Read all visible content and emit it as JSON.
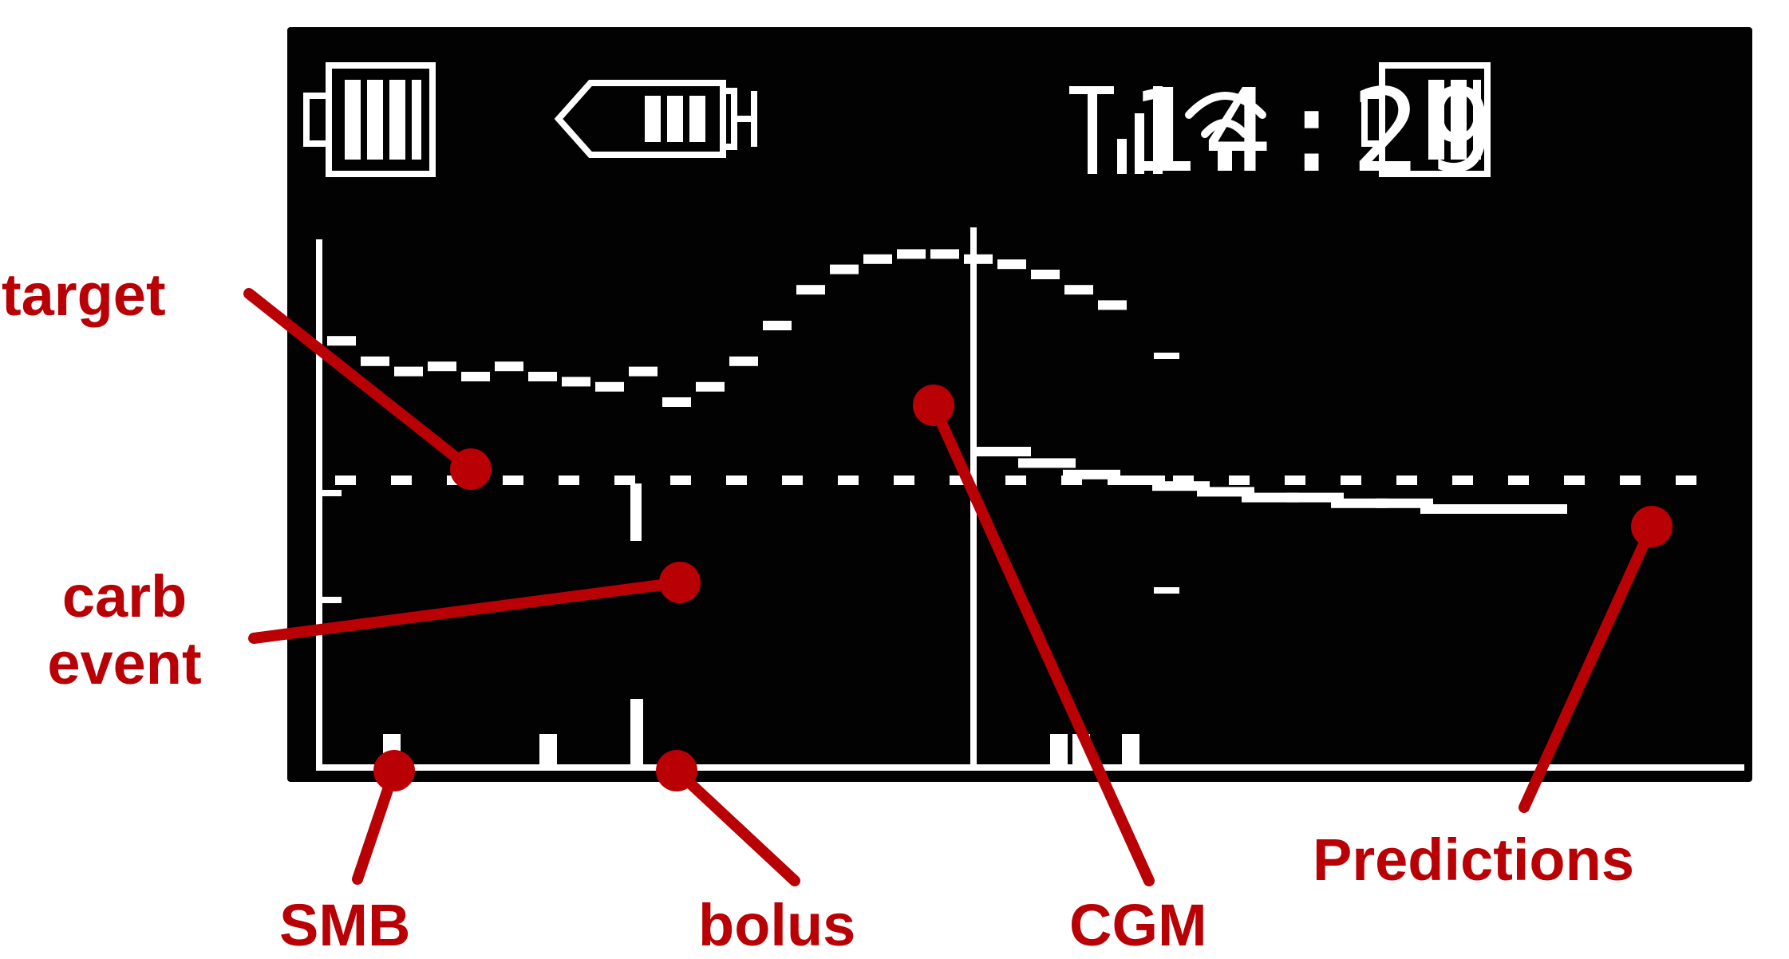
{
  "status_bar": {
    "time": "14:29",
    "icons": [
      "pump-battery-icon",
      "insulin-reservoir-icon",
      "cellular-signal-icon",
      "wifi-icon",
      "device-battery-icon"
    ]
  },
  "chart_data": {
    "type": "line",
    "series": [
      {
        "name": "target",
        "style": "dotted",
        "values": [
          42,
          42,
          42,
          42,
          42,
          42,
          42,
          42,
          42,
          42,
          42,
          42,
          42,
          42,
          42,
          42,
          42,
          42,
          42,
          42,
          42,
          42,
          42,
          42,
          42
        ]
      },
      {
        "name": "CGM",
        "values": [
          42,
          38,
          36,
          37,
          35,
          37,
          35,
          34,
          33,
          36,
          30,
          33,
          38,
          45,
          52,
          56,
          58,
          59,
          59,
          58,
          57,
          55,
          52,
          49
        ]
      },
      {
        "name": "Predictions",
        "values": [
          49,
          47,
          45,
          44,
          43,
          42,
          41,
          41,
          40,
          40,
          39,
          39,
          39
        ]
      }
    ],
    "events": {
      "carb_event": 9,
      "bolus": 9,
      "smb": [
        1,
        4,
        17,
        18,
        19
      ],
      "now": 19
    }
  },
  "annotations": {
    "target": "target",
    "carb_event": "carb\nevent",
    "smb": "SMB",
    "bolus": "bolus",
    "cgm": "CGM",
    "predictions": "Predictions"
  },
  "colors": {
    "screen": "#020202",
    "pixel": "#ffffff",
    "annotation": "#b80005"
  }
}
